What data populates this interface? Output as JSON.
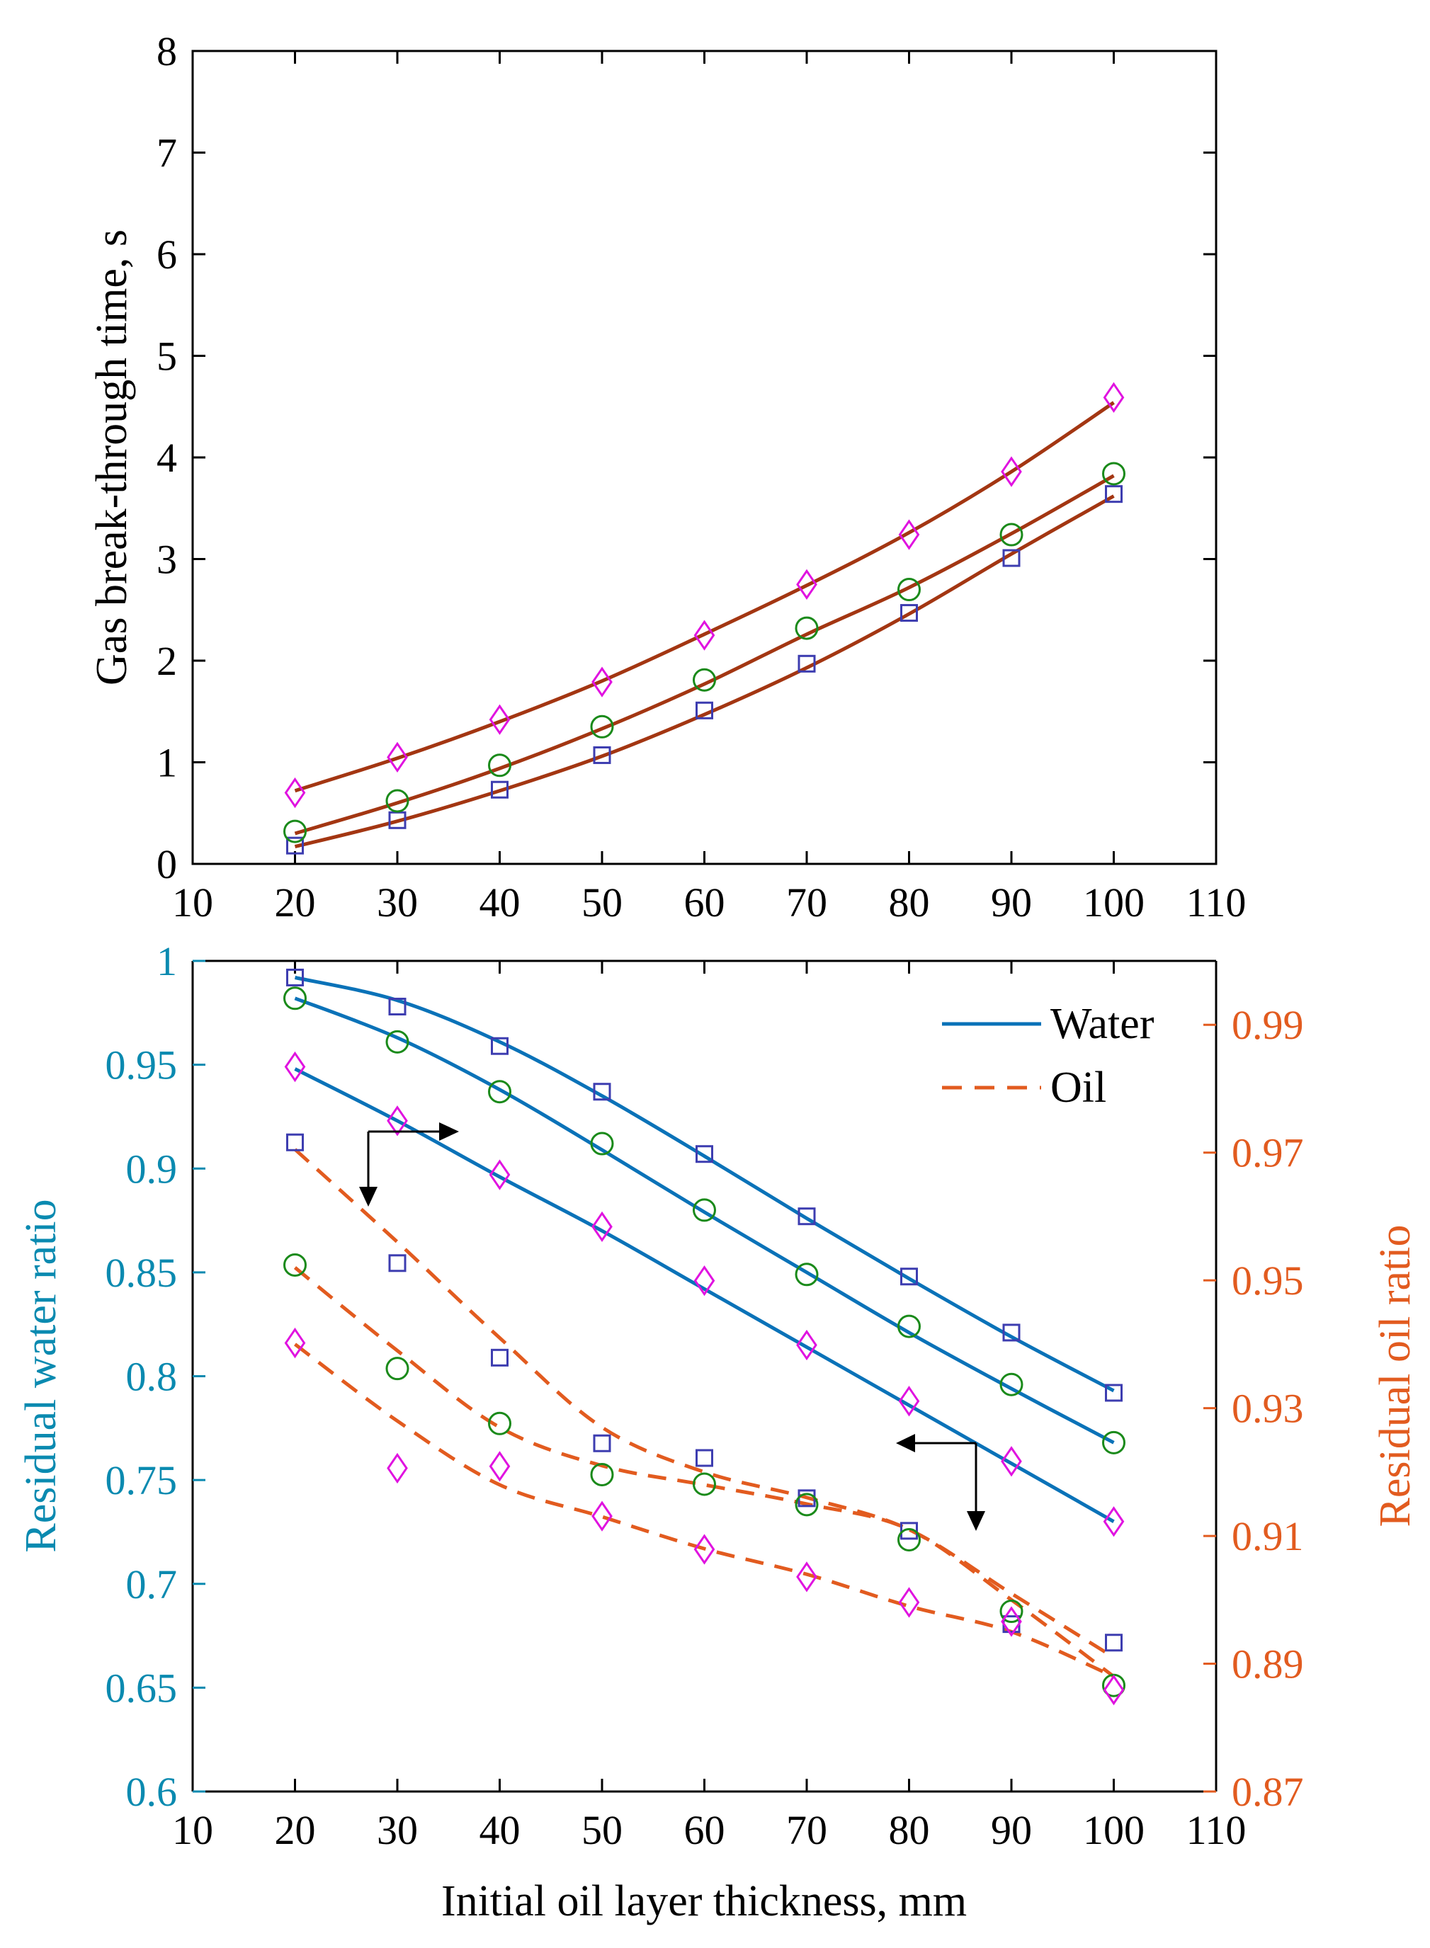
{
  "chart_data": [
    {
      "type": "line",
      "subtype": "scatter with fitted curves",
      "title": "",
      "xlabel": "",
      "ylabel": "Gas break-through time, s",
      "xlim": [
        10,
        110
      ],
      "ylim": [
        0,
        8
      ],
      "xticks": [
        10,
        20,
        30,
        40,
        50,
        60,
        70,
        80,
        90,
        100,
        110
      ],
      "yticks": [
        0,
        1,
        2,
        3,
        4,
        5,
        6,
        7,
        8
      ],
      "x": [
        20,
        30,
        40,
        50,
        60,
        70,
        80,
        90,
        100
      ],
      "series": [
        {
          "name": "square",
          "marker": "square",
          "marker_color": "#3d3db0",
          "line_color": "#a33612",
          "values": [
            0.18,
            0.43,
            0.73,
            1.07,
            1.51,
            1.97,
            2.47,
            3.01,
            3.64
          ],
          "fit": [
            0.17,
            0.42,
            0.72,
            1.06,
            1.47,
            1.93,
            2.46,
            3.05,
            3.62
          ]
        },
        {
          "name": "circle",
          "marker": "circle",
          "marker_color": "#1a8a1a",
          "line_color": "#a33612",
          "values": [
            0.32,
            0.62,
            0.97,
            1.35,
            1.81,
            2.32,
            2.7,
            3.24,
            3.84
          ],
          "fit": [
            0.3,
            0.6,
            0.94,
            1.33,
            1.77,
            2.26,
            2.72,
            3.25,
            3.82
          ]
        },
        {
          "name": "diamond",
          "marker": "diamond",
          "marker_color": "#e012e0",
          "line_color": "#a33612",
          "values": [
            0.7,
            1.05,
            1.42,
            1.79,
            2.25,
            2.75,
            3.24,
            3.86,
            4.59
          ],
          "fit": [
            0.72,
            1.04,
            1.4,
            1.8,
            2.26,
            2.74,
            3.26,
            3.86,
            4.54
          ]
        }
      ]
    },
    {
      "type": "line",
      "subtype": "dual-axis scatter with fitted curves",
      "title": "",
      "xlabel": "Initial oil layer thickness, mm",
      "ylabel": "Residual water ratio",
      "y2label": "Residual oil ratio",
      "xlim": [
        10,
        110
      ],
      "ylim": [
        0.6,
        1.0
      ],
      "y2lim": [
        0.87,
        1.0
      ],
      "xticks": [
        10,
        20,
        30,
        40,
        50,
        60,
        70,
        80,
        90,
        100,
        110
      ],
      "yticks": [
        "0.6",
        "0.65",
        "0.7",
        "0.75",
        "0.8",
        "0.85",
        "0.9",
        "0.95",
        "1"
      ],
      "y2ticks": [
        "0.87",
        "0.89",
        "0.91",
        "0.93",
        "0.95",
        "0.97",
        "0.99"
      ],
      "x": [
        20,
        30,
        40,
        50,
        60,
        70,
        80,
        90,
        100
      ],
      "legend": [
        {
          "label": "Water",
          "style": "solid",
          "color": "#0a72b8"
        },
        {
          "label": "Oil",
          "style": "dashed",
          "color": "#e25b1f"
        }
      ],
      "legend_position": "top-right",
      "water_series": [
        {
          "name": "square",
          "marker": "square",
          "values": [
            0.992,
            0.978,
            0.959,
            0.937,
            0.907,
            0.877,
            0.848,
            0.821,
            0.792
          ],
          "fit": [
            0.992,
            0.981,
            0.961,
            0.935,
            0.906,
            0.876,
            0.847,
            0.819,
            0.793
          ]
        },
        {
          "name": "circle",
          "marker": "circle",
          "values": [
            0.982,
            0.961,
            0.937,
            0.912,
            0.88,
            0.849,
            0.824,
            0.796,
            0.768
          ],
          "fit": [
            0.982,
            0.963,
            0.938,
            0.909,
            0.879,
            0.85,
            0.821,
            0.794,
            0.768
          ]
        },
        {
          "name": "diamond",
          "marker": "diamond",
          "values": [
            0.949,
            0.923,
            0.897,
            0.872,
            0.846,
            0.815,
            0.788,
            0.759,
            0.73
          ],
          "fit": [
            0.948,
            0.923,
            0.896,
            0.87,
            0.842,
            0.814,
            0.786,
            0.758,
            0.73
          ]
        }
      ],
      "oil_series": [
        {
          "name": "square",
          "marker": "square",
          "values": [
            0.9716,
            0.9527,
            0.9379,
            0.9245,
            0.9222,
            0.9159,
            0.9108,
            0.8962,
            0.8933
          ],
          "fit": [
            0.9705,
            0.956,
            0.941,
            0.927,
            0.92,
            0.916,
            0.911,
            0.901,
            0.891
          ]
        },
        {
          "name": "circle",
          "marker": "circle",
          "values": [
            0.9524,
            0.9362,
            0.9276,
            0.9196,
            0.9181,
            0.9149,
            0.9094,
            0.8982,
            0.8866
          ],
          "fit": [
            0.952,
            0.939,
            0.927,
            0.921,
            0.918,
            0.915,
            0.911,
            0.9,
            0.888
          ]
        },
        {
          "name": "diamond",
          "marker": "diamond",
          "values": [
            0.9402,
            0.9206,
            0.9209,
            0.9131,
            0.9079,
            0.9036,
            0.8996,
            0.8966,
            0.8859
          ],
          "fit": [
            0.94,
            0.928,
            0.918,
            0.913,
            0.908,
            0.904,
            0.899,
            0.895,
            0.888
          ]
        }
      ],
      "marker_colors": {
        "square": "#3d3db0",
        "circle": "#1a8a1a",
        "diamond": "#e012e0"
      },
      "left_axis_color": "#0a8ab0",
      "right_axis_color": "#e25b1f"
    }
  ]
}
